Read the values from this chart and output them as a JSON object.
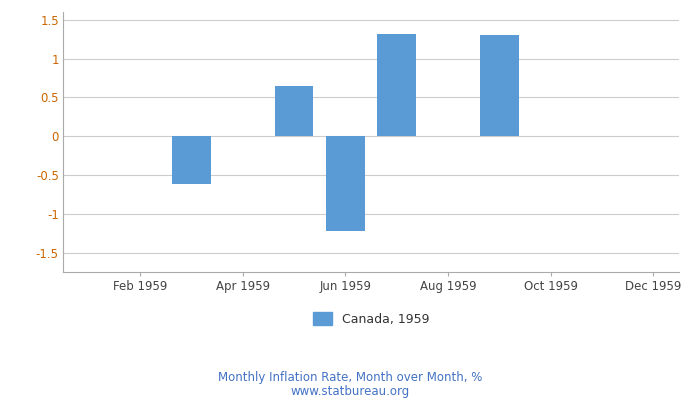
{
  "months": [
    1,
    2,
    3,
    4,
    5,
    6,
    7,
    8,
    9,
    10,
    11,
    12
  ],
  "values": [
    0,
    0,
    -0.62,
    0,
    0.65,
    -1.22,
    1.32,
    0,
    1.31,
    0,
    0,
    0
  ],
  "bar_color": "#5b9bd5",
  "ylim": [
    -1.75,
    1.6
  ],
  "yticks": [
    -1.5,
    -1.0,
    -0.5,
    0,
    0.5,
    1.0,
    1.5
  ],
  "ytick_labels": [
    "-1.5",
    "-1",
    "-0.5",
    "0",
    "0.5",
    "1",
    "1.5"
  ],
  "xtick_positions": [
    2,
    4,
    6,
    8,
    10,
    12
  ],
  "xtick_labels": [
    "Feb 1959",
    "Apr 1959",
    "Jun 1959",
    "Aug 1959",
    "Oct 1959",
    "Dec 1959"
  ],
  "legend_label": "Canada, 1959",
  "subtitle": "Monthly Inflation Rate, Month over Month, %",
  "watermark": "www.statbureau.org",
  "text_color": "#4472c4",
  "tick_label_color": "#cc6600",
  "bar_width": 0.75,
  "background_color": "#ffffff",
  "grid_color": "#cccccc"
}
